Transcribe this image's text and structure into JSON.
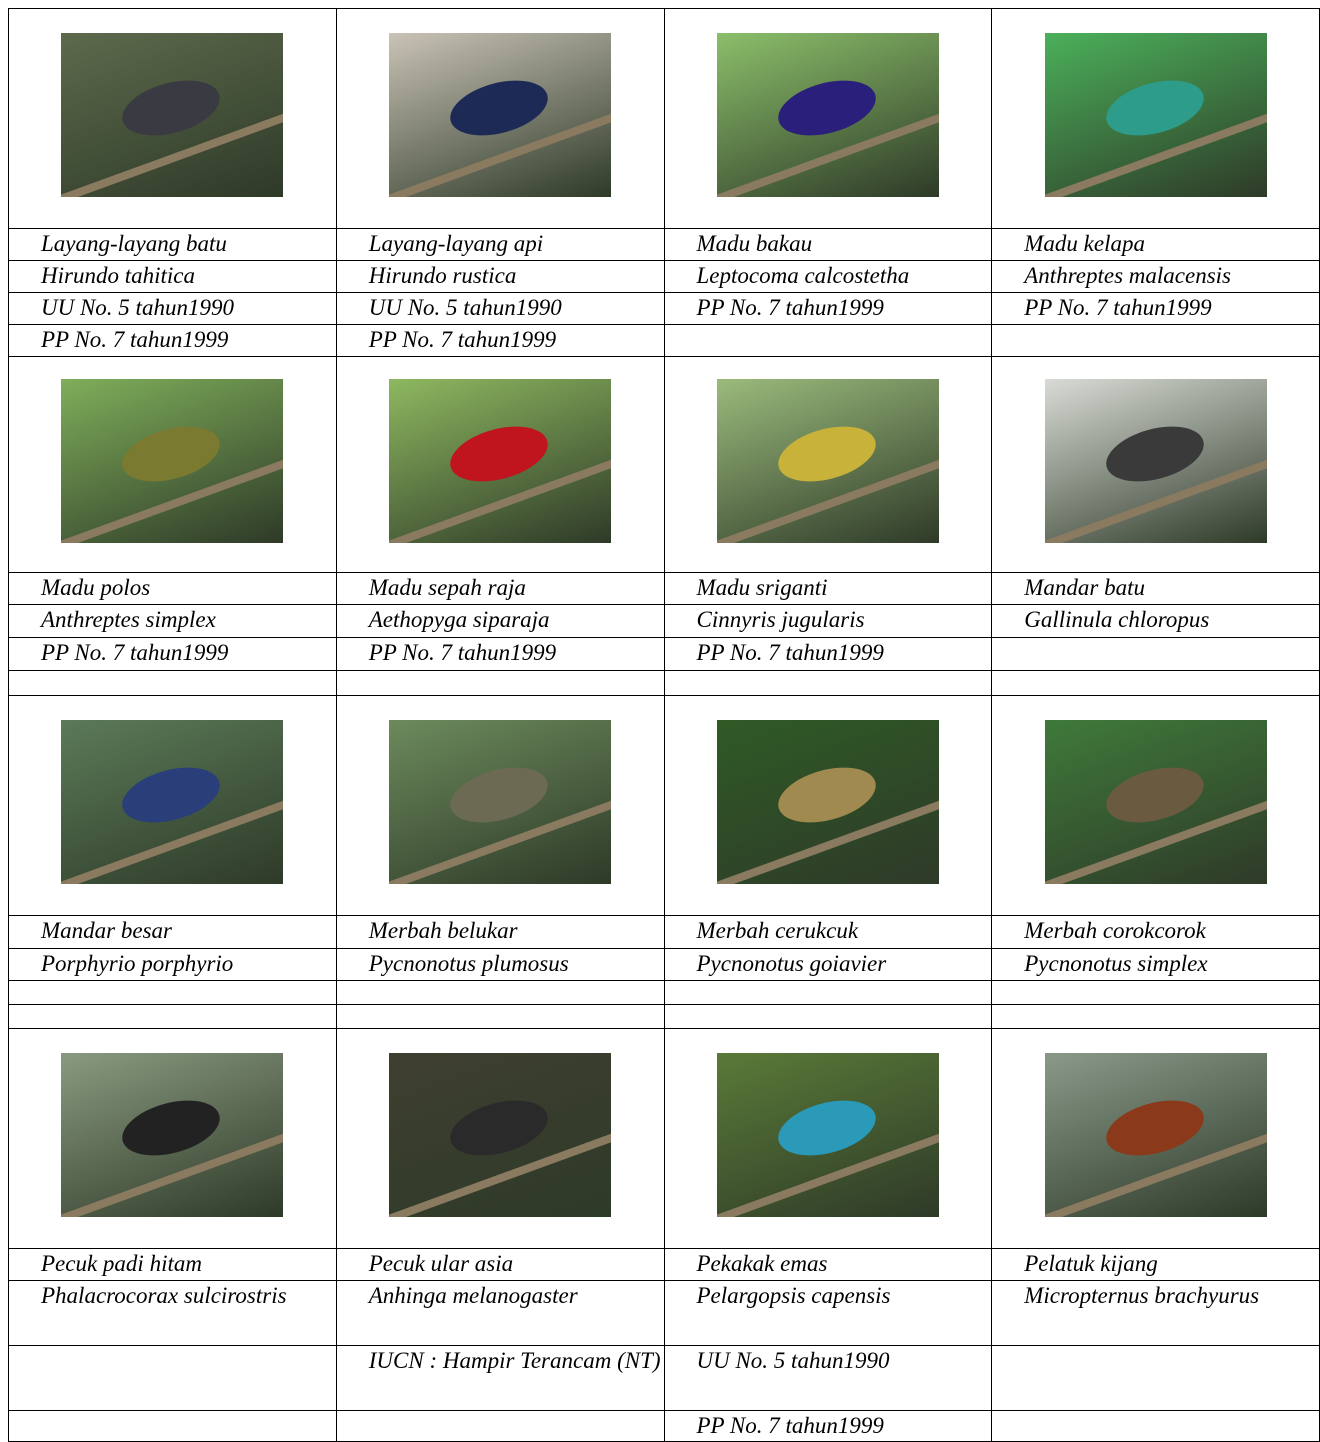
{
  "sections": [
    {
      "rows": [
        [
          "Layang-layang batu",
          "Layang-layang api",
          "Madu bakau",
          "Madu kelapa"
        ],
        [
          "Hirundo tahitica",
          "Hirundo rustica",
          "Leptocoma calcostetha",
          "Anthreptes malacensis"
        ],
        [
          "UU No. 5 tahun1990",
          "UU No. 5 tahun1990",
          "PP No. 7 tahun1999",
          "PP No. 7 tahun1999"
        ],
        [
          "PP No. 7 tahun1999",
          "PP No. 7 tahun1999",
          null,
          null
        ]
      ]
    },
    {
      "rows": [
        [
          "Madu polos",
          "Madu sepah raja",
          "Madu sriganti",
          "Mandar batu"
        ],
        [
          "Anthreptes simplex",
          "Aethopyga siparaja",
          "Cinnyris jugularis",
          "Gallinula chloropus"
        ],
        [
          "PP No. 7 tahun1999",
          "PP No. 7 tahun1999",
          "PP No. 7 tahun1999",
          null
        ],
        [
          null,
          null,
          null,
          null
        ]
      ]
    },
    {
      "rows": [
        [
          "Mandar besar",
          "Merbah belukar",
          "Merbah cerukcuk",
          "Merbah corokcorok"
        ],
        [
          "Porphyrio porphyrio",
          "Pycnonotus plumosus",
          "Pycnonotus goiavier",
          "Pycnonotus simplex"
        ],
        [
          null,
          null,
          null,
          null
        ],
        [
          null,
          null,
          null,
          null
        ]
      ]
    },
    {
      "rows": [
        [
          "Pecuk padi hitam",
          "Pecuk ular asia",
          "Pekakak emas",
          "Pelatuk kijang"
        ],
        [
          "Phalacrocorax sulcirostris",
          "Anhinga melanogaster",
          "Pelargopsis capensis",
          "Micropternus brachyurus"
        ],
        [
          null,
          "IUCN : Hampir Terancam (NT)",
          "UU No. 5 tahun1990",
          null
        ],
        [
          null,
          null,
          "PP No. 7 tahun1999",
          null
        ]
      ]
    }
  ]
}
